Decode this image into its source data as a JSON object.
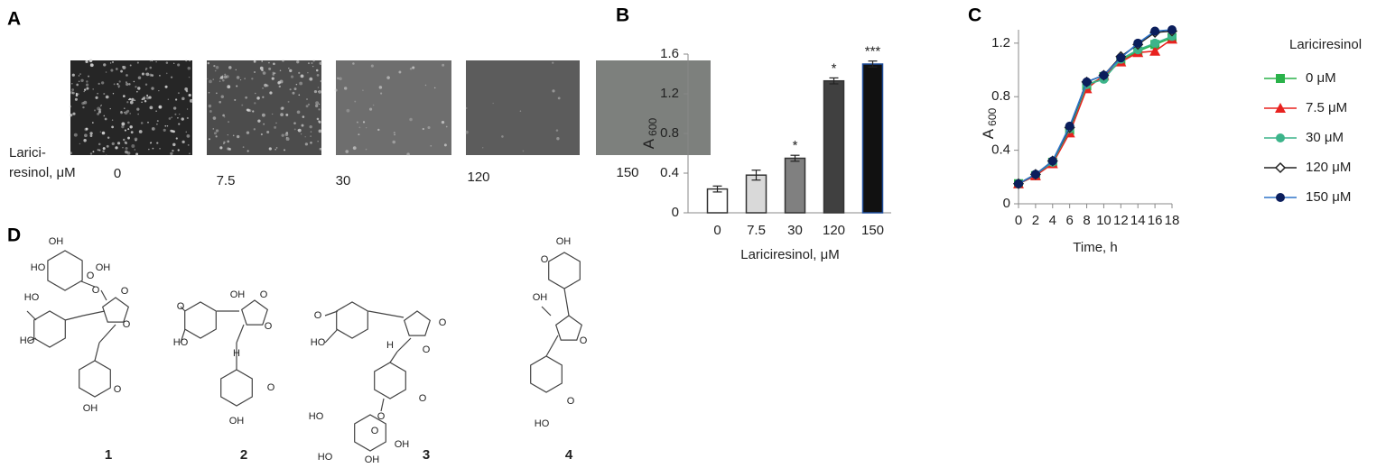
{
  "panel_labels": [
    "A",
    "B",
    "C",
    "D"
  ],
  "photos": {
    "label_lines": [
      "Larici-",
      "resinol, μM"
    ],
    "concentrations": [
      "0",
      "7.5",
      "30",
      "120",
      "150"
    ]
  },
  "chart_data": [
    {
      "type": "bar",
      "xlabel": "Lariciresinol, μM",
      "ylabel": "A",
      "ylabel_subscript": "600",
      "categories": [
        "0",
        "7.5",
        "30",
        "120",
        "150"
      ],
      "values": [
        0.24,
        0.38,
        0.55,
        1.33,
        1.5
      ],
      "errors": [
        0.03,
        0.05,
        0.03,
        0.03,
        0.03
      ],
      "value_annotations": [
        null,
        null,
        "*",
        "*",
        "***"
      ],
      "colors": [
        "#ffffff",
        "#d9d9d9",
        "#808080",
        "#404040",
        "#111111"
      ],
      "edgecolors": [
        "#333333",
        "#333333",
        "#333333",
        "#333333",
        "#1f4e9c"
      ],
      "ylim": [
        0,
        1.6
      ],
      "yticks": [
        0,
        0.4,
        0.8,
        1.2,
        1.6
      ]
    },
    {
      "type": "line",
      "xlabel": "Time, h",
      "ylabel": "A",
      "ylabel_subscript": "600",
      "legend_title": "Lariciresinol",
      "x": [
        0,
        2,
        4,
        6,
        8,
        10,
        12,
        14,
        16,
        18
      ],
      "xlim": [
        0,
        18
      ],
      "xticks": [
        0,
        2,
        4,
        6,
        8,
        10,
        12,
        14,
        16,
        18
      ],
      "ylim": [
        0,
        1.3
      ],
      "yticks": [
        0,
        0.4,
        0.8,
        1.2
      ],
      "legend": "right",
      "series": [
        {
          "name": "0 μM",
          "color": "#2ab24a",
          "marker": "square",
          "values": [
            0.15,
            0.21,
            0.31,
            0.55,
            0.88,
            0.95,
            1.07,
            1.14,
            1.19,
            1.24
          ]
        },
        {
          "name": "7.5 μM",
          "color": "#e8221f",
          "marker": "triangle",
          "values": [
            0.15,
            0.21,
            0.3,
            0.53,
            0.86,
            0.96,
            1.06,
            1.13,
            1.14,
            1.23
          ]
        },
        {
          "name": "30 μM",
          "color": "#3cb48a",
          "marker": "circle",
          "values": [
            0.15,
            0.22,
            0.31,
            0.56,
            0.89,
            0.93,
            1.08,
            1.15,
            1.2,
            1.25
          ]
        },
        {
          "name": "120 μM",
          "color": "#222222",
          "marker": "diamond",
          "values": [
            0.15,
            0.22,
            0.32,
            0.57,
            0.91,
            0.96,
            1.1,
            1.19,
            1.28,
            1.29
          ]
        },
        {
          "name": "150 μM",
          "color": "#0b1e5c",
          "line_color": "#2e74c9",
          "marker": "circle",
          "values": [
            0.15,
            0.22,
            0.32,
            0.58,
            0.91,
            0.96,
            1.09,
            1.2,
            1.29,
            1.3
          ]
        }
      ]
    }
  ],
  "compounds": [
    {
      "number": "1",
      "atoms": [
        "OH",
        "HO",
        "OH",
        "HO",
        "O",
        "O",
        "O",
        "O",
        "HO",
        "O",
        "OH"
      ]
    },
    {
      "number": "2",
      "atoms": [
        "O",
        "HO",
        "OH",
        "O",
        "O",
        "H",
        "O",
        "OH"
      ]
    },
    {
      "number": "3",
      "atoms": [
        "O",
        "HO",
        "H",
        "O",
        "O",
        "O",
        "O",
        "HO",
        "O",
        "HO",
        "OH",
        "OH"
      ]
    },
    {
      "number": "4",
      "atoms": [
        "OH",
        "O",
        "OH",
        "O",
        "O",
        "HO"
      ]
    }
  ]
}
